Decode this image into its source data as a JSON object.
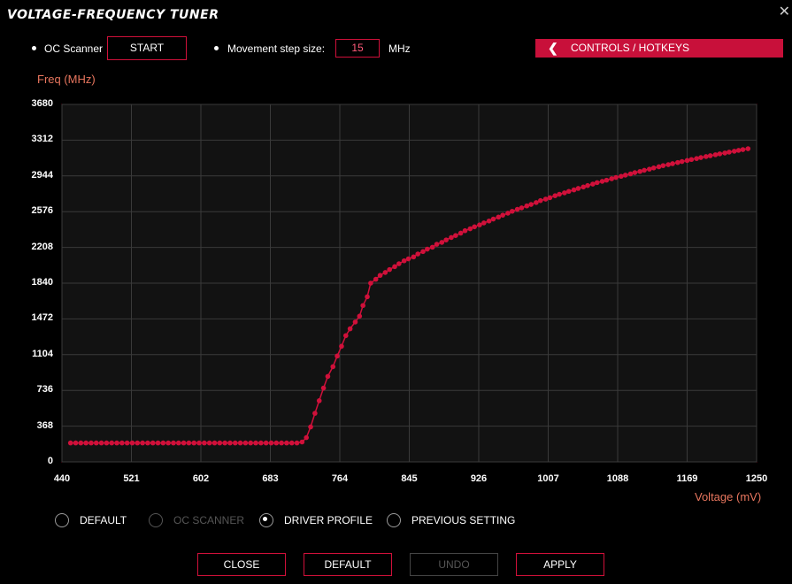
{
  "window": {
    "title": "VOLTAGE-FREQUENCY TUNER",
    "close": "✕"
  },
  "controls": {
    "oc_scanner_label": "OC Scanner",
    "start_label": "START",
    "step_label": "Movement step size:",
    "step_value": "15",
    "step_unit": "MHz",
    "hotkeys_label": "CONTROLS / HOTKEYS",
    "hotkeys_icon": "chevron-left-icon"
  },
  "chart_data": {
    "type": "line",
    "ylabel": "Freq (MHz)",
    "xlabel": "Voltage (mV)",
    "ylim": [
      0,
      3680
    ],
    "xlim": [
      440,
      1250
    ],
    "yticks": [
      0,
      368,
      736,
      1104,
      1472,
      1840,
      2208,
      2576,
      2944,
      3312,
      3680
    ],
    "xticks": [
      440,
      521,
      602,
      683,
      764,
      845,
      926,
      1007,
      1088,
      1169,
      1250
    ],
    "grid": true,
    "series": [
      {
        "color": "#d0103a",
        "points": [
          [
            450,
            195
          ],
          [
            456,
            195
          ],
          [
            462,
            195
          ],
          [
            468,
            195
          ],
          [
            474,
            195
          ],
          [
            480,
            195
          ],
          [
            486,
            195
          ],
          [
            492,
            195
          ],
          [
            498,
            195
          ],
          [
            504,
            195
          ],
          [
            510,
            195
          ],
          [
            516,
            195
          ],
          [
            522,
            195
          ],
          [
            528,
            195
          ],
          [
            534,
            195
          ],
          [
            540,
            195
          ],
          [
            546,
            195
          ],
          [
            552,
            195
          ],
          [
            558,
            195
          ],
          [
            564,
            195
          ],
          [
            570,
            195
          ],
          [
            576,
            195
          ],
          [
            582,
            195
          ],
          [
            588,
            195
          ],
          [
            594,
            195
          ],
          [
            600,
            195
          ],
          [
            606,
            195
          ],
          [
            612,
            195
          ],
          [
            618,
            195
          ],
          [
            624,
            195
          ],
          [
            630,
            195
          ],
          [
            636,
            195
          ],
          [
            642,
            195
          ],
          [
            648,
            195
          ],
          [
            654,
            195
          ],
          [
            660,
            195
          ],
          [
            666,
            195
          ],
          [
            672,
            195
          ],
          [
            678,
            195
          ],
          [
            684,
            195
          ],
          [
            690,
            195
          ],
          [
            696,
            195
          ],
          [
            702,
            195
          ],
          [
            708,
            195
          ],
          [
            714,
            195
          ],
          [
            720,
            205
          ],
          [
            725,
            250
          ],
          [
            730,
            360
          ],
          [
            735,
            500
          ],
          [
            740,
            630
          ],
          [
            745,
            760
          ],
          [
            750,
            880
          ],
          [
            756,
            980
          ],
          [
            761,
            1090
          ],
          [
            766,
            1190
          ],
          [
            771,
            1300
          ],
          [
            776,
            1370
          ],
          [
            782,
            1440
          ],
          [
            787,
            1500
          ],
          [
            791,
            1610
          ],
          [
            796,
            1700
          ],
          [
            800,
            1840
          ],
          [
            806,
            1880
          ],
          [
            811,
            1920
          ],
          [
            817,
            1950
          ],
          [
            822,
            1980
          ],
          [
            828,
            2010
          ],
          [
            833,
            2040
          ],
          [
            839,
            2070
          ],
          [
            844,
            2090
          ],
          [
            850,
            2110
          ],
          [
            855,
            2140
          ],
          [
            861,
            2165
          ],
          [
            866,
            2190
          ],
          [
            872,
            2210
          ],
          [
            877,
            2240
          ],
          [
            883,
            2260
          ],
          [
            888,
            2285
          ],
          [
            894,
            2310
          ],
          [
            899,
            2330
          ],
          [
            905,
            2355
          ],
          [
            910,
            2380
          ],
          [
            916,
            2400
          ],
          [
            921,
            2420
          ],
          [
            927,
            2440
          ],
          [
            932,
            2460
          ],
          [
            938,
            2480
          ],
          [
            943,
            2500
          ],
          [
            949,
            2520
          ],
          [
            954,
            2540
          ],
          [
            960,
            2560
          ],
          [
            965,
            2580
          ],
          [
            971,
            2600
          ],
          [
            976,
            2615
          ],
          [
            982,
            2635
          ],
          [
            987,
            2650
          ],
          [
            993,
            2670
          ],
          [
            998,
            2690
          ],
          [
            1004,
            2705
          ],
          [
            1009,
            2720
          ],
          [
            1015,
            2740
          ],
          [
            1020,
            2755
          ],
          [
            1026,
            2770
          ],
          [
            1031,
            2785
          ],
          [
            1037,
            2800
          ],
          [
            1042,
            2815
          ],
          [
            1048,
            2830
          ],
          [
            1053,
            2845
          ],
          [
            1059,
            2860
          ],
          [
            1064,
            2875
          ],
          [
            1070,
            2888
          ],
          [
            1075,
            2900
          ],
          [
            1081,
            2915
          ],
          [
            1086,
            2928
          ],
          [
            1092,
            2940
          ],
          [
            1097,
            2952
          ],
          [
            1103,
            2965
          ],
          [
            1108,
            2978
          ],
          [
            1114,
            2990
          ],
          [
            1119,
            3002
          ],
          [
            1125,
            3014
          ],
          [
            1130,
            3026
          ],
          [
            1136,
            3038
          ],
          [
            1141,
            3050
          ],
          [
            1147,
            3060
          ],
          [
            1152,
            3070
          ],
          [
            1158,
            3082
          ],
          [
            1163,
            3092
          ],
          [
            1169,
            3103
          ],
          [
            1174,
            3113
          ],
          [
            1180,
            3123
          ],
          [
            1185,
            3133
          ],
          [
            1191,
            3143
          ],
          [
            1196,
            3152
          ],
          [
            1202,
            3162
          ],
          [
            1207,
            3171
          ],
          [
            1213,
            3180
          ],
          [
            1218,
            3189
          ],
          [
            1224,
            3198
          ],
          [
            1229,
            3207
          ],
          [
            1234,
            3215
          ],
          [
            1240,
            3224
          ]
        ]
      }
    ]
  },
  "radios": [
    {
      "label": "DEFAULT",
      "selected": false,
      "disabled": false
    },
    {
      "label": "OC SCANNER",
      "selected": false,
      "disabled": true
    },
    {
      "label": "DRIVER PROFILE",
      "selected": true,
      "disabled": false
    },
    {
      "label": "PREVIOUS SETTING",
      "selected": false,
      "disabled": false
    }
  ],
  "buttons": {
    "close": "CLOSE",
    "default": "DEFAULT",
    "undo": "UNDO",
    "apply": "APPLY"
  }
}
